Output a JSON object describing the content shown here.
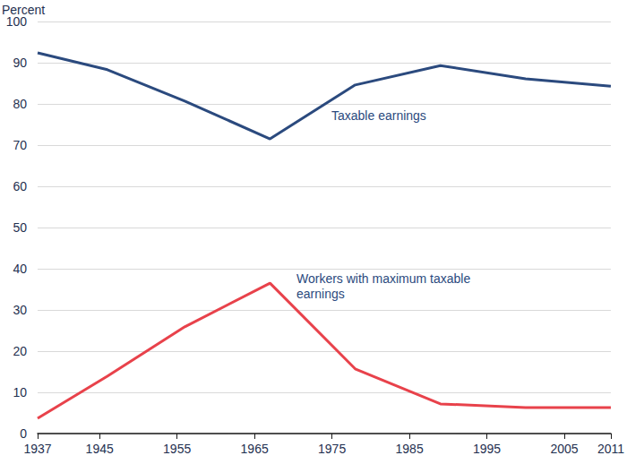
{
  "chart_data": {
    "type": "line",
    "ylabel": "Percent",
    "x": [
      1937,
      1946,
      1956,
      1967,
      1978,
      1989,
      2000,
      2011
    ],
    "series": [
      {
        "name": "Taxable earnings",
        "color": "#2b4a7e",
        "values": [
          92.4,
          88.3,
          80.7,
          71.5,
          84.6,
          89.3,
          86.1,
          84.3
        ]
      },
      {
        "name": "Workers with maximum taxable earnings",
        "color": "#e8424b",
        "values": [
          3.7,
          13.9,
          25.9,
          36.5,
          15.7,
          7.2,
          6.3,
          6.3
        ]
      }
    ],
    "xlim": [
      1937,
      2011
    ],
    "xticks": [
      1937,
      1945,
      1955,
      1965,
      1975,
      1985,
      1995,
      2005,
      2011
    ],
    "ylim": [
      0,
      100
    ],
    "yticks": [
      0,
      10,
      20,
      30,
      40,
      50,
      60,
      70,
      80,
      90,
      100
    ],
    "grid": true
  }
}
